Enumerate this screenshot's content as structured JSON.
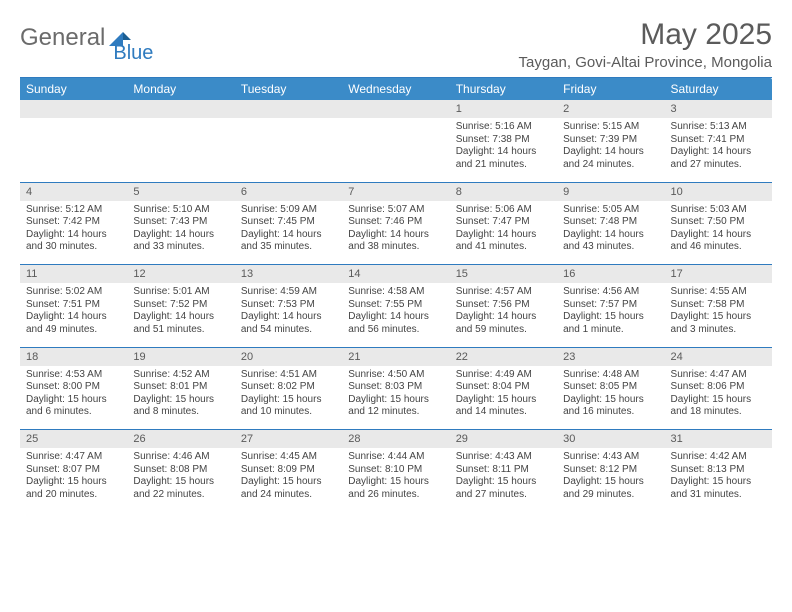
{
  "logo": {
    "word1": "General",
    "word2": "Blue"
  },
  "title": "May 2025",
  "location": "Taygan, Govi-Altai Province, Mongolia",
  "colors": {
    "header_bg": "#3b8bc8",
    "header_text": "#ffffff",
    "rule": "#2f7bbf",
    "daynum_bg": "#e9e9e9",
    "body_text": "#444444",
    "logo_gray": "#6b6b6b",
    "logo_blue": "#2f7bbf"
  },
  "weekdays": [
    "Sunday",
    "Monday",
    "Tuesday",
    "Wednesday",
    "Thursday",
    "Friday",
    "Saturday"
  ],
  "weeks": [
    [
      null,
      null,
      null,
      null,
      {
        "n": "1",
        "sr": "5:16 AM",
        "ss": "7:38 PM",
        "dl": "14 hours and 21 minutes."
      },
      {
        "n": "2",
        "sr": "5:15 AM",
        "ss": "7:39 PM",
        "dl": "14 hours and 24 minutes."
      },
      {
        "n": "3",
        "sr": "5:13 AM",
        "ss": "7:41 PM",
        "dl": "14 hours and 27 minutes."
      }
    ],
    [
      {
        "n": "4",
        "sr": "5:12 AM",
        "ss": "7:42 PM",
        "dl": "14 hours and 30 minutes."
      },
      {
        "n": "5",
        "sr": "5:10 AM",
        "ss": "7:43 PM",
        "dl": "14 hours and 33 minutes."
      },
      {
        "n": "6",
        "sr": "5:09 AM",
        "ss": "7:45 PM",
        "dl": "14 hours and 35 minutes."
      },
      {
        "n": "7",
        "sr": "5:07 AM",
        "ss": "7:46 PM",
        "dl": "14 hours and 38 minutes."
      },
      {
        "n": "8",
        "sr": "5:06 AM",
        "ss": "7:47 PM",
        "dl": "14 hours and 41 minutes."
      },
      {
        "n": "9",
        "sr": "5:05 AM",
        "ss": "7:48 PM",
        "dl": "14 hours and 43 minutes."
      },
      {
        "n": "10",
        "sr": "5:03 AM",
        "ss": "7:50 PM",
        "dl": "14 hours and 46 minutes."
      }
    ],
    [
      {
        "n": "11",
        "sr": "5:02 AM",
        "ss": "7:51 PM",
        "dl": "14 hours and 49 minutes."
      },
      {
        "n": "12",
        "sr": "5:01 AM",
        "ss": "7:52 PM",
        "dl": "14 hours and 51 minutes."
      },
      {
        "n": "13",
        "sr": "4:59 AM",
        "ss": "7:53 PM",
        "dl": "14 hours and 54 minutes."
      },
      {
        "n": "14",
        "sr": "4:58 AM",
        "ss": "7:55 PM",
        "dl": "14 hours and 56 minutes."
      },
      {
        "n": "15",
        "sr": "4:57 AM",
        "ss": "7:56 PM",
        "dl": "14 hours and 59 minutes."
      },
      {
        "n": "16",
        "sr": "4:56 AM",
        "ss": "7:57 PM",
        "dl": "15 hours and 1 minute."
      },
      {
        "n": "17",
        "sr": "4:55 AM",
        "ss": "7:58 PM",
        "dl": "15 hours and 3 minutes."
      }
    ],
    [
      {
        "n": "18",
        "sr": "4:53 AM",
        "ss": "8:00 PM",
        "dl": "15 hours and 6 minutes."
      },
      {
        "n": "19",
        "sr": "4:52 AM",
        "ss": "8:01 PM",
        "dl": "15 hours and 8 minutes."
      },
      {
        "n": "20",
        "sr": "4:51 AM",
        "ss": "8:02 PM",
        "dl": "15 hours and 10 minutes."
      },
      {
        "n": "21",
        "sr": "4:50 AM",
        "ss": "8:03 PM",
        "dl": "15 hours and 12 minutes."
      },
      {
        "n": "22",
        "sr": "4:49 AM",
        "ss": "8:04 PM",
        "dl": "15 hours and 14 minutes."
      },
      {
        "n": "23",
        "sr": "4:48 AM",
        "ss": "8:05 PM",
        "dl": "15 hours and 16 minutes."
      },
      {
        "n": "24",
        "sr": "4:47 AM",
        "ss": "8:06 PM",
        "dl": "15 hours and 18 minutes."
      }
    ],
    [
      {
        "n": "25",
        "sr": "4:47 AM",
        "ss": "8:07 PM",
        "dl": "15 hours and 20 minutes."
      },
      {
        "n": "26",
        "sr": "4:46 AM",
        "ss": "8:08 PM",
        "dl": "15 hours and 22 minutes."
      },
      {
        "n": "27",
        "sr": "4:45 AM",
        "ss": "8:09 PM",
        "dl": "15 hours and 24 minutes."
      },
      {
        "n": "28",
        "sr": "4:44 AM",
        "ss": "8:10 PM",
        "dl": "15 hours and 26 minutes."
      },
      {
        "n": "29",
        "sr": "4:43 AM",
        "ss": "8:11 PM",
        "dl": "15 hours and 27 minutes."
      },
      {
        "n": "30",
        "sr": "4:43 AM",
        "ss": "8:12 PM",
        "dl": "15 hours and 29 minutes."
      },
      {
        "n": "31",
        "sr": "4:42 AM",
        "ss": "8:13 PM",
        "dl": "15 hours and 31 minutes."
      }
    ]
  ],
  "labels": {
    "sunrise": "Sunrise:",
    "sunset": "Sunset:",
    "daylight": "Daylight:"
  }
}
